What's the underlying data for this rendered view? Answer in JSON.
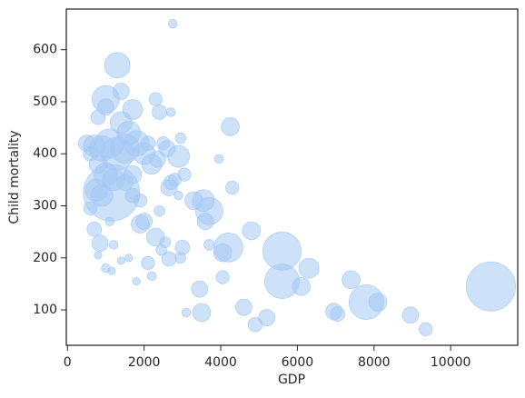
{
  "chart_data": {
    "type": "scatter",
    "x_label": "GDP",
    "y_label": "Child mortality",
    "color": "#a4c8f4",
    "x": [
      11050,
      5600,
      5600,
      7800,
      1150,
      1000,
      1300,
      4200,
      3700,
      1700,
      4250,
      6300,
      6100,
      4800,
      8100,
      8950,
      6950,
      7050,
      7400,
      5200,
      4900,
      4600,
      3500,
      3450,
      4050,
      4050,
      4300,
      9350,
      2300,
      2000,
      1900,
      3000,
      2650,
      2950,
      2100,
      1000,
      700,
      850,
      600,
      900,
      750,
      3550,
      3300,
      3600,
      2650,
      2800,
      2900,
      2600,
      2350,
      2200,
      2000,
      1800,
      1600,
      1500,
      1300,
      1100,
      900,
      700,
      500,
      600,
      800,
      1000,
      1200,
      1700,
      1700,
      1400,
      800,
      1000,
      1400,
      2400,
      2300,
      2700,
      2750,
      2950,
      3050,
      2900,
      2400,
      2550,
      2200,
      3950,
      3100,
      1800,
      1150,
      1200,
      1600,
      1400,
      2450,
      2700,
      3700,
      800,
      1100,
      1900,
      1500,
      2100,
      2500
    ],
    "values": [
      145,
      213,
      155,
      115,
      325,
      505,
      570,
      220,
      290,
      485,
      452,
      180,
      145,
      252,
      115,
      90,
      97,
      92,
      158,
      85,
      72,
      105,
      95,
      140,
      210,
      163,
      335,
      63,
      240,
      270,
      265,
      220,
      198,
      200,
      190,
      180,
      255,
      228,
      295,
      320,
      330,
      310,
      310,
      270,
      335,
      350,
      395,
      410,
      390,
      380,
      400,
      420,
      440,
      410,
      400,
      420,
      410,
      415,
      420,
      400,
      380,
      360,
      350,
      360,
      320,
      460,
      470,
      490,
      520,
      480,
      505,
      480,
      650,
      430,
      360,
      320,
      290,
      230,
      165,
      390,
      95,
      155,
      175,
      225,
      200,
      195,
      215,
      345,
      225,
      205,
      270,
      310,
      345,
      420,
      420
    ],
    "sizes": [
      127,
      77,
      63,
      63,
      167,
      39,
      34,
      44,
      39,
      21,
      17,
      21,
      17,
      17,
      17,
      14,
      14,
      11,
      17,
      14,
      11,
      14,
      17,
      14,
      17,
      9,
      9,
      9,
      17,
      14,
      17,
      11,
      11,
      6,
      9,
      4,
      11,
      14,
      9,
      25,
      25,
      25,
      17,
      14,
      14,
      9,
      25,
      14,
      14,
      21,
      25,
      34,
      29,
      44,
      56,
      44,
      34,
      25,
      14,
      11,
      17,
      29,
      25,
      17,
      11,
      25,
      11,
      14,
      14,
      11,
      9,
      4,
      4,
      6,
      9,
      4,
      6,
      6,
      4,
      4,
      4,
      3,
      3,
      4,
      3,
      3,
      6,
      11,
      6,
      3,
      4,
      9,
      14,
      11,
      9
    ],
    "xlim": [
      -30,
      11750
    ],
    "ylim": [
      32,
      678
    ],
    "xticks": [
      0,
      2000,
      4000,
      6000,
      8000,
      10000
    ],
    "yticks": [
      100,
      200,
      300,
      400,
      500,
      600
    ]
  }
}
